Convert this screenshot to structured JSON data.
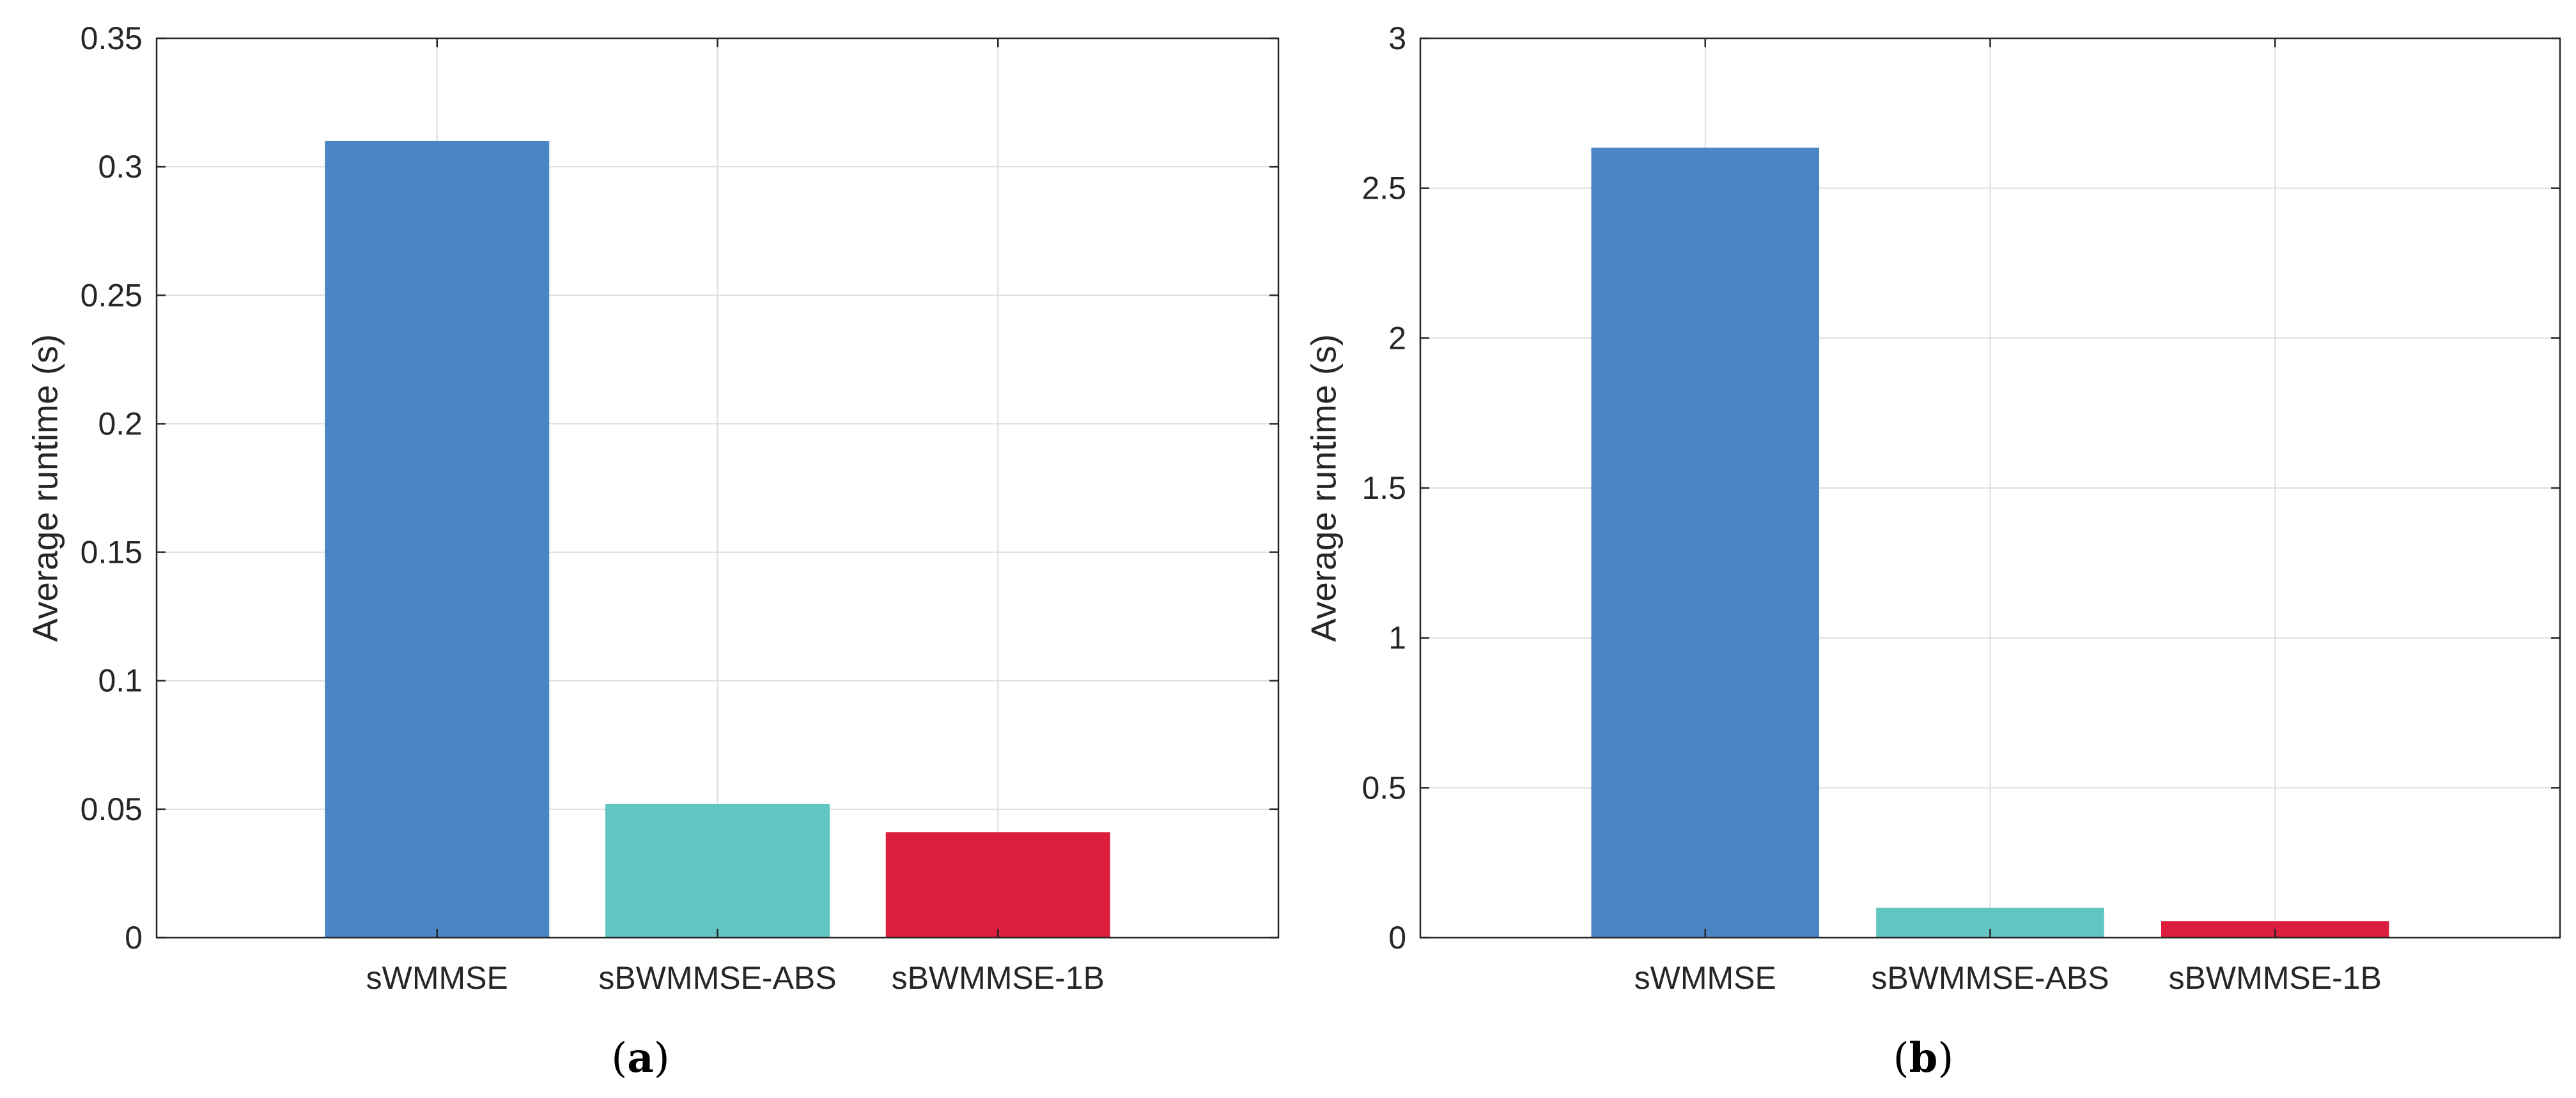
{
  "chart_data": [
    {
      "type": "bar",
      "caption": "a",
      "title": "",
      "xlabel": "",
      "ylabel": "Average runtime (s)",
      "ylim": [
        0,
        0.35
      ],
      "yticks": [
        0,
        0.05,
        0.1,
        0.15,
        0.2,
        0.25,
        0.3,
        0.35
      ],
      "ytick_labels": [
        "0",
        "0.05",
        "0.1",
        "0.15",
        "0.2",
        "0.25",
        "0.3",
        "0.35"
      ],
      "grid": true,
      "categories": [
        "sWMMSE",
        "sBWMMSE-ABS",
        "sBWMMSE-1B"
      ],
      "values": [
        0.31,
        0.052,
        0.041
      ],
      "colors": [
        "#4a86c5",
        "#63c5c1",
        "#dc1d3d"
      ]
    },
    {
      "type": "bar",
      "caption": "b",
      "title": "",
      "xlabel": "",
      "ylabel": "Average runtime (s)",
      "ylim": [
        0,
        3
      ],
      "yticks": [
        0,
        0.5,
        1,
        1.5,
        2,
        2.5,
        3
      ],
      "ytick_labels": [
        "0",
        "0.5",
        "1",
        "1.5",
        "2",
        "2.5",
        "3"
      ],
      "grid": true,
      "categories": [
        "sWMMSE",
        "sBWMMSE-ABS",
        "sBWMMSE-1B"
      ],
      "values": [
        2.635,
        0.1,
        0.055
      ],
      "colors": [
        "#4a86c5",
        "#63c5c1",
        "#dc1d3d"
      ]
    }
  ]
}
